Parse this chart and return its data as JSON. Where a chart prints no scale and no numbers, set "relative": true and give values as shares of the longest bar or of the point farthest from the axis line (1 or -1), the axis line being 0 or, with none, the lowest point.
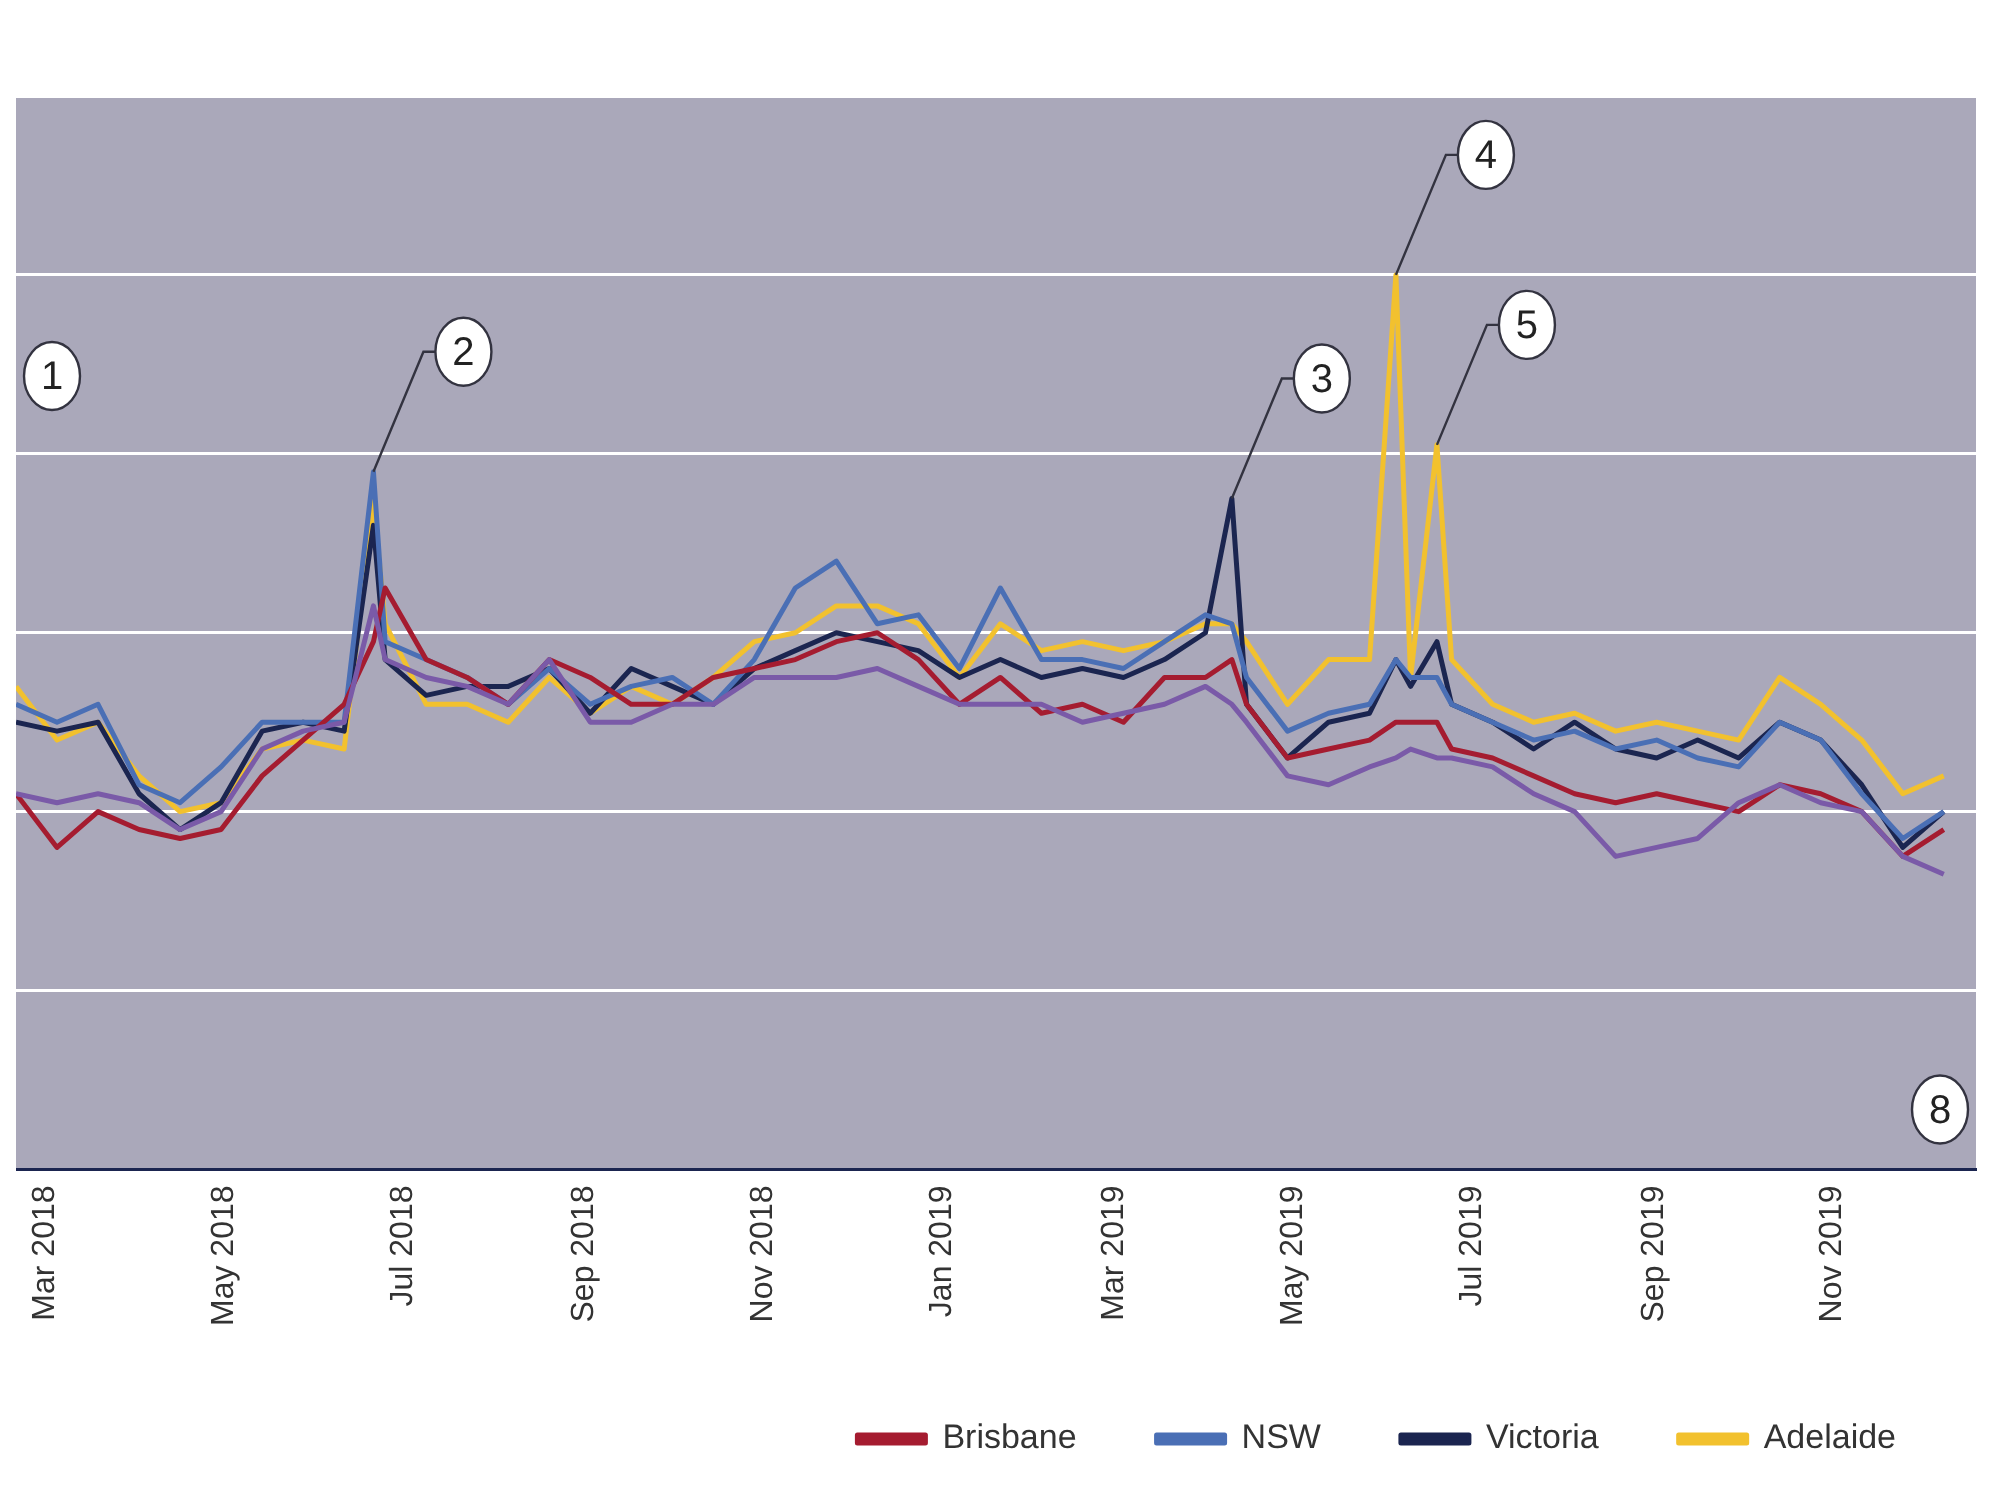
{
  "chart_data": {
    "type": "line",
    "relative": true,
    "x": [
      "2018-02-19",
      "2018-03-05",
      "2018-03-19",
      "2018-04-02",
      "2018-04-16",
      "2018-04-30",
      "2018-05-14",
      "2018-05-28",
      "2018-06-11",
      "2018-06-21",
      "2018-06-25",
      "2018-07-09",
      "2018-07-23",
      "2018-08-06",
      "2018-08-20",
      "2018-09-03",
      "2018-09-17",
      "2018-10-01",
      "2018-10-15",
      "2018-10-29",
      "2018-11-12",
      "2018-11-26",
      "2018-12-10",
      "2018-12-24",
      "2019-01-07",
      "2019-01-21",
      "2019-02-04",
      "2019-02-18",
      "2019-03-04",
      "2019-03-18",
      "2019-04-01",
      "2019-04-10",
      "2019-04-15",
      "2019-04-29",
      "2019-05-13",
      "2019-05-27",
      "2019-06-05",
      "2019-06-10",
      "2019-06-19",
      "2019-06-24",
      "2019-07-08",
      "2019-07-22",
      "2019-08-05",
      "2019-08-19",
      "2019-09-02",
      "2019-09-16",
      "2019-09-30",
      "2019-10-14",
      "2019-10-28",
      "2019-11-11",
      "2019-11-25",
      "2019-12-09"
    ],
    "xlim": [
      "2018-02-19",
      "2019-12-20"
    ],
    "xticks": [
      {
        "value": "2018-03-01",
        "label": "Mar 2018"
      },
      {
        "value": "2018-05-01",
        "label": "May 2018"
      },
      {
        "value": "2018-07-01",
        "label": "Jul 2018"
      },
      {
        "value": "2018-09-01",
        "label": "Sep 2018"
      },
      {
        "value": "2018-11-01",
        "label": "Nov 2018"
      },
      {
        "value": "2019-01-01",
        "label": "Jan 2019"
      },
      {
        "value": "2019-03-01",
        "label": "Mar 2019"
      },
      {
        "value": "2019-05-01",
        "label": "May 2019"
      },
      {
        "value": "2019-07-01",
        "label": "Jul 2019"
      },
      {
        "value": "2019-09-01",
        "label": "Sep 2019"
      },
      {
        "value": "2019-11-01",
        "label": "Nov 2019"
      }
    ],
    "series": [
      {
        "color": "#7a5aa8",
        "values": [
          0.42,
          0.41,
          0.42,
          0.41,
          0.38,
          0.4,
          0.47,
          0.49,
          0.5,
          0.63,
          0.57,
          0.55,
          0.54,
          0.52,
          0.57,
          0.5,
          0.5,
          0.52,
          0.52,
          0.55,
          0.55,
          0.55,
          0.56,
          0.54,
          0.52,
          0.52,
          0.52,
          0.5,
          0.51,
          0.52,
          0.54,
          0.52,
          0.5,
          0.44,
          0.43,
          0.45,
          0.46,
          0.47,
          0.46,
          0.46,
          0.45,
          0.42,
          0.4,
          0.35,
          0.36,
          0.37,
          0.41,
          0.43,
          0.41,
          0.4,
          0.35,
          0.33
        ]
      },
      {
        "name": "Brisbane",
        "color": "#a51c30",
        "values": [
          0.42,
          0.36,
          0.4,
          0.38,
          0.37,
          0.38,
          0.44,
          0.48,
          0.52,
          0.59,
          0.65,
          0.57,
          0.55,
          0.52,
          0.57,
          0.55,
          0.52,
          0.52,
          0.55,
          0.56,
          0.57,
          0.59,
          0.6,
          0.57,
          0.52,
          0.55,
          0.51,
          0.52,
          0.5,
          0.55,
          0.55,
          0.57,
          0.52,
          0.46,
          0.47,
          0.48,
          0.5,
          0.5,
          0.5,
          0.47,
          0.46,
          0.44,
          0.42,
          0.41,
          0.42,
          0.41,
          0.4,
          0.43,
          0.42,
          0.4,
          0.35,
          0.38
        ]
      },
      {
        "name": "NSW",
        "color": "#4a6fb5",
        "values": [
          0.52,
          0.5,
          0.52,
          0.43,
          0.41,
          0.45,
          0.5,
          0.5,
          0.5,
          0.78,
          0.59,
          0.57,
          0.55,
          0.52,
          0.56,
          0.52,
          0.54,
          0.55,
          0.52,
          0.57,
          0.65,
          0.68,
          0.61,
          0.62,
          0.56,
          0.65,
          0.57,
          0.57,
          0.56,
          0.59,
          0.62,
          0.61,
          0.55,
          0.49,
          0.51,
          0.52,
          0.57,
          0.55,
          0.55,
          0.52,
          0.5,
          0.48,
          0.49,
          0.47,
          0.48,
          0.46,
          0.45,
          0.5,
          0.48,
          0.42,
          0.37,
          0.4
        ]
      },
      {
        "name": "Victoria",
        "color": "#1b2550",
        "values": [
          0.5,
          0.49,
          0.5,
          0.42,
          0.38,
          0.41,
          0.49,
          0.5,
          0.49,
          0.72,
          0.57,
          0.53,
          0.54,
          0.54,
          0.56,
          0.51,
          0.56,
          0.54,
          0.52,
          0.56,
          0.58,
          0.6,
          0.59,
          0.58,
          0.55,
          0.57,
          0.55,
          0.56,
          0.55,
          0.57,
          0.6,
          0.75,
          0.52,
          0.46,
          0.5,
          0.51,
          0.57,
          0.54,
          0.59,
          0.52,
          0.5,
          0.47,
          0.5,
          0.47,
          0.46,
          0.48,
          0.46,
          0.5,
          0.48,
          0.43,
          0.36,
          0.4
        ]
      },
      {
        "name": "Adelaide",
        "color": "#f2c12e",
        "values": [
          0.54,
          0.48,
          0.5,
          0.44,
          0.4,
          0.41,
          0.47,
          0.48,
          0.47,
          0.75,
          0.61,
          0.52,
          0.52,
          0.5,
          0.55,
          0.51,
          0.54,
          0.52,
          0.55,
          0.59,
          0.6,
          0.63,
          0.63,
          0.61,
          0.55,
          0.61,
          0.58,
          0.59,
          0.58,
          0.59,
          0.61,
          0.61,
          0.59,
          0.52,
          0.57,
          0.57,
          1.0,
          0.55,
          0.81,
          0.57,
          0.52,
          0.5,
          0.51,
          0.49,
          0.5,
          0.49,
          0.48,
          0.55,
          0.52,
          0.48,
          0.42,
          0.44
        ]
      }
    ],
    "annotations": [
      "1",
      {
        "text": "2",
        "x": "2018-06-21",
        "y": 0.78
      },
      {
        "text": "3",
        "x": "2019-04-10",
        "y": 0.75
      },
      {
        "text": "4",
        "x": "2019-06-05",
        "y": 1.0
      },
      {
        "text": "5",
        "x": "2019-06-19",
        "y": 0.81
      },
      "8"
    ],
    "grid": "y",
    "legend": "bottom right",
    "marker": "none",
    "line_style": "solid"
  }
}
